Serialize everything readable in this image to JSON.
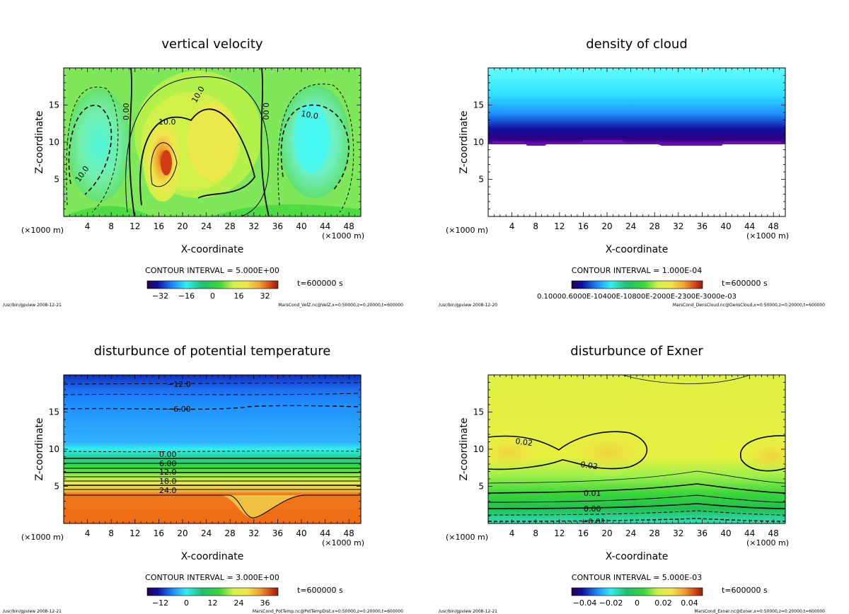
{
  "colors": {
    "white": "#ffffff",
    "black": "#000000",
    "green": "#3ad63a",
    "lightgreen": "#9df04a",
    "yellowgreen": "#d2f04a",
    "yellow": "#f0e64a",
    "orange": "#f0a032",
    "red": "#d23c14",
    "cyan": "#30f0f0",
    "lightcyan": "#60ffff",
    "blue": "#1e90ff",
    "navy": "#1010a0",
    "purple": "#6a10b8"
  },
  "chart_data": [
    {
      "type": "heatmap",
      "id": "vertical_velocity",
      "title": "vertical velocity",
      "xlabel": "X-coordinate",
      "ylabel": "Z-coordinate",
      "x_unit_left": "(×1000 m)",
      "x_unit_right": "(×1000 m)",
      "xlim": [
        0,
        50
      ],
      "ylim": [
        0,
        20
      ],
      "xticks": [
        4,
        8,
        12,
        16,
        20,
        24,
        28,
        32,
        36,
        40,
        44,
        48
      ],
      "yticks": [
        5,
        10,
        15
      ],
      "contour_interval": "CONTOUR INTERVAL = 5.000E+00",
      "time": "t=600000 s",
      "colorbar_ticks": [
        "−32",
        "−16",
        "0",
        "16",
        "32"
      ],
      "contour_labels": [
        "10.0",
        "10.0",
        "0.00",
        "0.00",
        "10.0",
        "10.0"
      ],
      "footer_left": "/usr/bin/gpview 2008-12-21",
      "footer_right": "MarsCond_VelZ.nc@VelZ,x=0:50000,z=0:20000,t=600000"
    },
    {
      "type": "heatmap",
      "id": "density_of_cloud",
      "title": "density of cloud",
      "xlabel": "X-coordinate",
      "ylabel": "Z-coordinate",
      "x_unit_left": "(×1000 m)",
      "x_unit_right": "(×1000 m)",
      "xlim": [
        0,
        50
      ],
      "ylim": [
        0,
        20
      ],
      "xticks": [
        4,
        8,
        12,
        16,
        20,
        24,
        28,
        32,
        36,
        40,
        44,
        48
      ],
      "yticks": [
        5,
        10,
        15
      ],
      "contour_interval": "CONTOUR INTERVAL = 1.000E-04",
      "time": "t=600000 s",
      "colorbar_ticks": [
        "0.10000.6000E-10400E-10800E-2000E-2300E-3000e-03"
      ],
      "footer_left": "/usr/bin/gpview 2008-12-20",
      "footer_right": "MarsCond_DensCloud.nc@DensCloud,x=0:50000,z=0:20000,t=600000"
    },
    {
      "type": "heatmap",
      "id": "potential_temperature",
      "title": "disturbunce of potential temperature",
      "xlabel": "X-coordinate",
      "ylabel": "Z-coordinate",
      "x_unit_left": "(×1000 m)",
      "x_unit_right": "(×1000 m)",
      "xlim": [
        0,
        50
      ],
      "ylim": [
        0,
        20
      ],
      "xticks": [
        4,
        8,
        12,
        16,
        20,
        24,
        28,
        32,
        36,
        40,
        44,
        48
      ],
      "yticks": [
        5,
        10,
        15
      ],
      "contour_interval": "CONTOUR INTERVAL = 3.000E+00",
      "time": "t=600000 s",
      "colorbar_ticks": [
        "−12",
        "0",
        "12",
        "24",
        "36"
      ],
      "contour_labels": [
        "−12.0",
        "−6.00",
        "0.00",
        "6.00",
        "12.0",
        "18.0",
        "24.0"
      ],
      "footer_left": "/usr/bin/gpview 2008-12-21",
      "footer_right": "MarsCond_PotTemp.nc@PotTempDist,x=0:50000,z=0:20000,t=600000"
    },
    {
      "type": "heatmap",
      "id": "exner",
      "title": "disturbunce of Exner",
      "xlabel": "X-coordinate",
      "ylabel": "Z-coordinate",
      "x_unit_left": "(×1000 m)",
      "x_unit_right": "(×1000 m)",
      "xlim": [
        0,
        50
      ],
      "ylim": [
        0,
        20
      ],
      "xticks": [
        4,
        8,
        12,
        16,
        20,
        24,
        28,
        32,
        36,
        40,
        44,
        48
      ],
      "yticks": [
        5,
        10,
        15
      ],
      "contour_interval": "CONTOUR INTERVAL = 5.000E-03",
      "time": "t=600000 s",
      "colorbar_ticks": [
        "−0.04",
        "−0.02",
        "0",
        "0.02",
        "0.04"
      ],
      "contour_labels": [
        "0.02",
        "0.02",
        "0.01",
        "0.00",
        "−0.01"
      ],
      "footer_left": "/usr/bin/gpview 2008-12-21",
      "footer_right": "MarsCond_Exner.nc@Exner,x=0:50000,z=0:20000,t=600000"
    }
  ]
}
